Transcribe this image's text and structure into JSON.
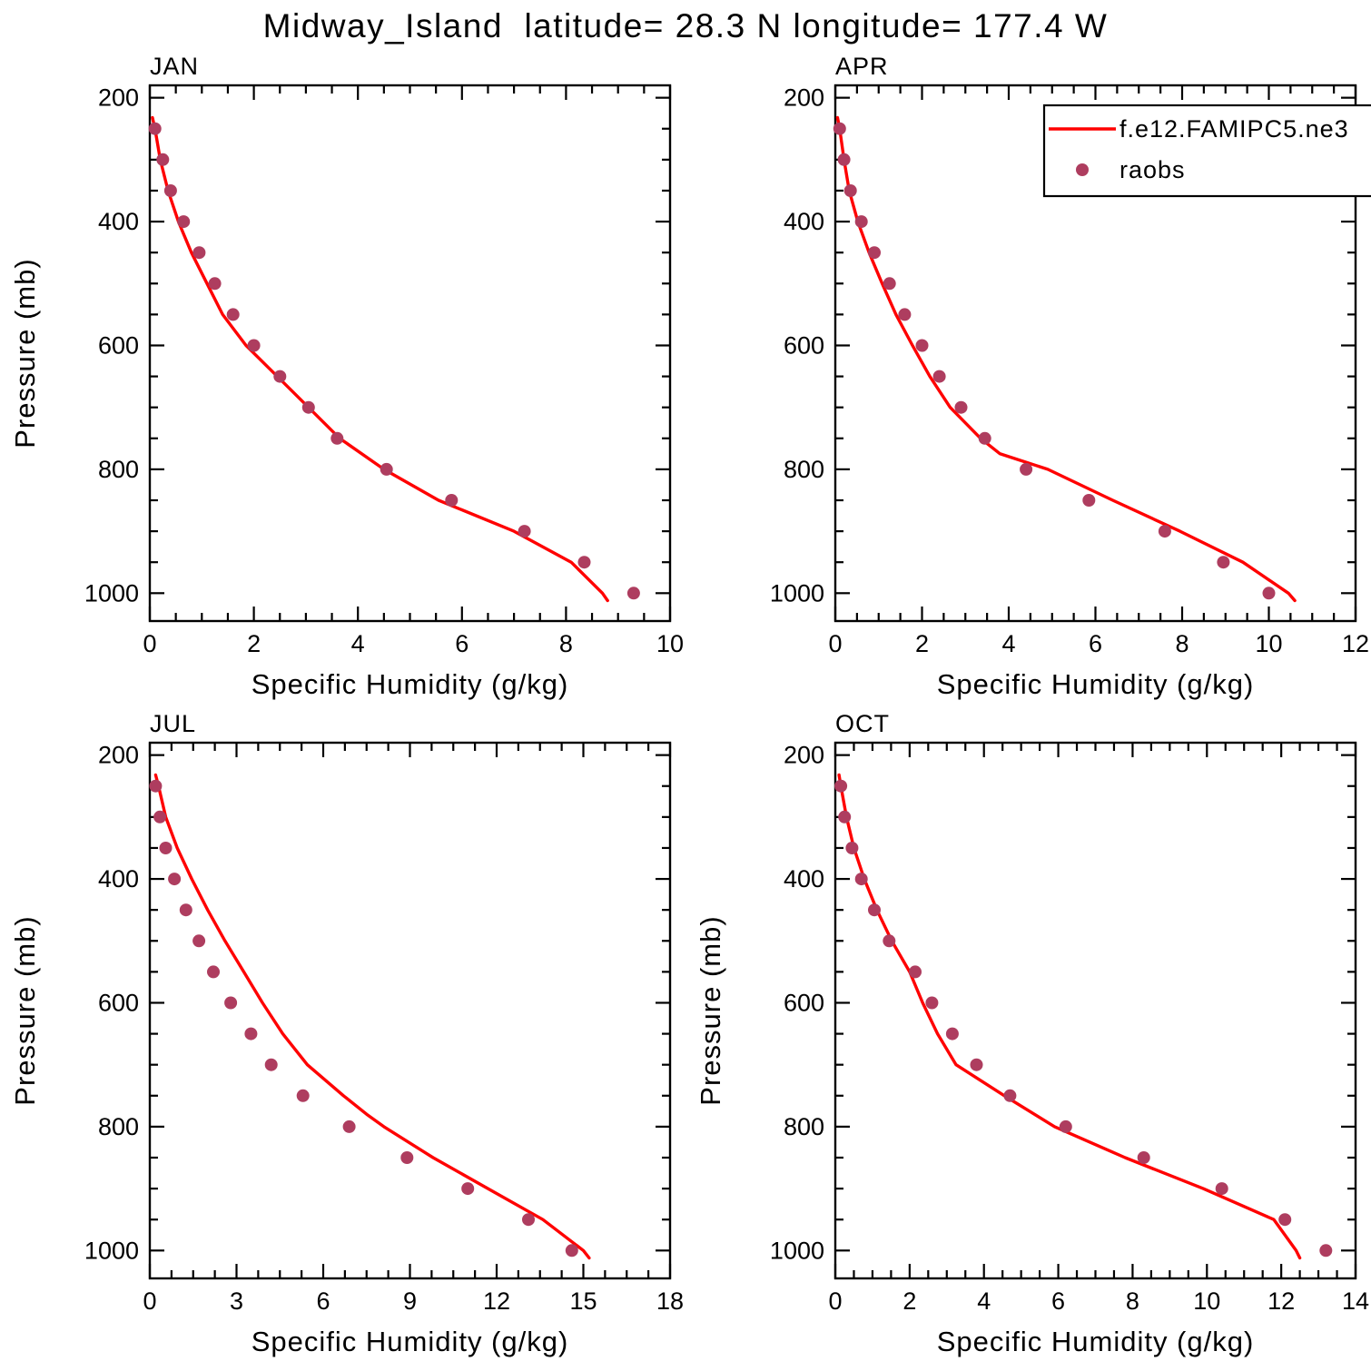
{
  "title": "Midway_Island  latitude= 28.3 N longitude= 177.4 W",
  "legend": {
    "line_label": "f.e12.FAMIPC5.ne3",
    "dot_label": "raobs"
  },
  "colors": {
    "model_line": "#FF0000",
    "raobs": "#AE3D5F",
    "axis": "#000000"
  },
  "axes": {
    "ylabel": "Pressure (mb)",
    "xlabel": "Specific Humidity (g/kg)",
    "pressure_range": [
      180,
      1045
    ],
    "pressure_ticks": [
      200,
      400,
      600,
      800,
      1000
    ],
    "pressure_minor_step": 50
  },
  "chart_data": [
    {
      "type": "line+scatter",
      "panel": "JAN",
      "xlabel": "Specific Humidity (g/kg)",
      "ylabel": "Pressure (mb)",
      "xlim": [
        0,
        10
      ],
      "xticks": [
        0,
        2,
        4,
        6,
        8,
        10
      ],
      "x_minor_step": 0.5,
      "ylim": [
        1045,
        180
      ],
      "show_y_title": true,
      "show_legend": false,
      "series": [
        {
          "name": "f.e12.FAMIPC5.ne3",
          "type": "line",
          "points": [
            [
              232,
              0.05
            ],
            [
              250,
              0.1
            ],
            [
              300,
              0.2
            ],
            [
              350,
              0.35
            ],
            [
              400,
              0.55
            ],
            [
              450,
              0.8
            ],
            [
              500,
              1.1
            ],
            [
              550,
              1.4
            ],
            [
              600,
              1.85
            ],
            [
              650,
              2.45
            ],
            [
              700,
              3.05
            ],
            [
              750,
              3.65
            ],
            [
              800,
              4.5
            ],
            [
              850,
              5.55
            ],
            [
              900,
              7.0
            ],
            [
              950,
              8.1
            ],
            [
              1000,
              8.7
            ],
            [
              1012,
              8.8
            ]
          ]
        },
        {
          "name": "raobs",
          "type": "scatter",
          "points": [
            [
              250,
              0.1
            ],
            [
              300,
              0.25
            ],
            [
              350,
              0.4
            ],
            [
              400,
              0.65
            ],
            [
              450,
              0.95
            ],
            [
              500,
              1.25
            ],
            [
              550,
              1.6
            ],
            [
              600,
              2.0
            ],
            [
              650,
              2.5
            ],
            [
              700,
              3.05
            ],
            [
              750,
              3.6
            ],
            [
              800,
              4.55
            ],
            [
              850,
              5.8
            ],
            [
              900,
              7.2
            ],
            [
              950,
              8.35
            ],
            [
              1000,
              9.3
            ]
          ]
        }
      ]
    },
    {
      "type": "line+scatter",
      "panel": "APR",
      "xlabel": "Specific Humidity (g/kg)",
      "ylabel": "Pressure (mb)",
      "xlim": [
        0,
        12
      ],
      "xticks": [
        0,
        2,
        4,
        6,
        8,
        10,
        12
      ],
      "x_minor_step": 0.5,
      "ylim": [
        1045,
        180
      ],
      "show_y_title": false,
      "show_legend": true,
      "series": [
        {
          "name": "f.e12.FAMIPC5.ne3",
          "type": "line",
          "points": [
            [
              232,
              0.05
            ],
            [
              250,
              0.1
            ],
            [
              300,
              0.2
            ],
            [
              350,
              0.32
            ],
            [
              400,
              0.52
            ],
            [
              450,
              0.78
            ],
            [
              500,
              1.08
            ],
            [
              550,
              1.4
            ],
            [
              600,
              1.78
            ],
            [
              650,
              2.18
            ],
            [
              700,
              2.65
            ],
            [
              750,
              3.35
            ],
            [
              775,
              3.8
            ],
            [
              800,
              4.9
            ],
            [
              850,
              6.4
            ],
            [
              900,
              7.95
            ],
            [
              950,
              9.4
            ],
            [
              1000,
              10.45
            ],
            [
              1012,
              10.6
            ]
          ]
        },
        {
          "name": "raobs",
          "type": "scatter",
          "points": [
            [
              250,
              0.1
            ],
            [
              300,
              0.2
            ],
            [
              350,
              0.35
            ],
            [
              400,
              0.6
            ],
            [
              450,
              0.9
            ],
            [
              500,
              1.25
            ],
            [
              550,
              1.6
            ],
            [
              600,
              2.0
            ],
            [
              650,
              2.4
            ],
            [
              700,
              2.9
            ],
            [
              750,
              3.45
            ],
            [
              800,
              4.4
            ],
            [
              850,
              5.85
            ],
            [
              900,
              7.6
            ],
            [
              950,
              8.95
            ],
            [
              1000,
              10.0
            ]
          ]
        }
      ]
    },
    {
      "type": "line+scatter",
      "panel": "JUL",
      "xlabel": "Specific Humidity (g/kg)",
      "ylabel": "Pressure (mb)",
      "xlim": [
        0,
        18
      ],
      "xticks": [
        0,
        3,
        6,
        9,
        12,
        15,
        18
      ],
      "x_minor_step": 0.75,
      "ylim": [
        1045,
        180
      ],
      "show_y_title": true,
      "show_legend": false,
      "series": [
        {
          "name": "f.e12.FAMIPC5.ne3",
          "type": "line",
          "points": [
            [
              232,
              0.2
            ],
            [
              250,
              0.3
            ],
            [
              300,
              0.55
            ],
            [
              350,
              0.95
            ],
            [
              400,
              1.45
            ],
            [
              450,
              2.0
            ],
            [
              500,
              2.6
            ],
            [
              550,
              3.25
            ],
            [
              600,
              3.9
            ],
            [
              650,
              4.6
            ],
            [
              700,
              5.45
            ],
            [
              750,
              6.7
            ],
            [
              780,
              7.5
            ],
            [
              800,
              8.1
            ],
            [
              850,
              9.8
            ],
            [
              900,
              11.7
            ],
            [
              950,
              13.6
            ],
            [
              1000,
              15.0
            ],
            [
              1012,
              15.2
            ]
          ]
        },
        {
          "name": "raobs",
          "type": "scatter",
          "points": [
            [
              250,
              0.2
            ],
            [
              300,
              0.35
            ],
            [
              350,
              0.55
            ],
            [
              400,
              0.85
            ],
            [
              450,
              1.25
            ],
            [
              500,
              1.7
            ],
            [
              550,
              2.2
            ],
            [
              600,
              2.8
            ],
            [
              650,
              3.5
            ],
            [
              700,
              4.2
            ],
            [
              750,
              5.3
            ],
            [
              800,
              6.9
            ],
            [
              850,
              8.9
            ],
            [
              900,
              11.0
            ],
            [
              950,
              13.1
            ],
            [
              1000,
              14.6
            ]
          ]
        }
      ]
    },
    {
      "type": "line+scatter",
      "panel": "OCT",
      "xlabel": "Specific Humidity (g/kg)",
      "ylabel": "Pressure (mb)",
      "xlim": [
        0,
        14
      ],
      "xticks": [
        0,
        2,
        4,
        6,
        8,
        10,
        12,
        14
      ],
      "x_minor_step": 0.5,
      "ylim": [
        1045,
        180
      ],
      "show_y_title": true,
      "show_legend": false,
      "series": [
        {
          "name": "f.e12.FAMIPC5.ne3",
          "type": "line",
          "points": [
            [
              232,
              0.1
            ],
            [
              250,
              0.15
            ],
            [
              300,
              0.3
            ],
            [
              350,
              0.5
            ],
            [
              400,
              0.78
            ],
            [
              450,
              1.12
            ],
            [
              500,
              1.52
            ],
            [
              550,
              2.0
            ],
            [
              600,
              2.35
            ],
            [
              650,
              2.75
            ],
            [
              700,
              3.25
            ],
            [
              750,
              4.55
            ],
            [
              800,
              5.9
            ],
            [
              850,
              7.8
            ],
            [
              900,
              9.9
            ],
            [
              950,
              11.8
            ],
            [
              1000,
              12.4
            ],
            [
              1012,
              12.5
            ]
          ]
        },
        {
          "name": "raobs",
          "type": "scatter",
          "points": [
            [
              250,
              0.15
            ],
            [
              300,
              0.25
            ],
            [
              350,
              0.45
            ],
            [
              400,
              0.7
            ],
            [
              450,
              1.05
            ],
            [
              500,
              1.45
            ],
            [
              550,
              2.15
            ],
            [
              600,
              2.6
            ],
            [
              650,
              3.15
            ],
            [
              700,
              3.8
            ],
            [
              750,
              4.7
            ],
            [
              800,
              6.2
            ],
            [
              850,
              8.3
            ],
            [
              900,
              10.4
            ],
            [
              950,
              12.1
            ],
            [
              1000,
              13.2
            ]
          ]
        }
      ]
    }
  ]
}
